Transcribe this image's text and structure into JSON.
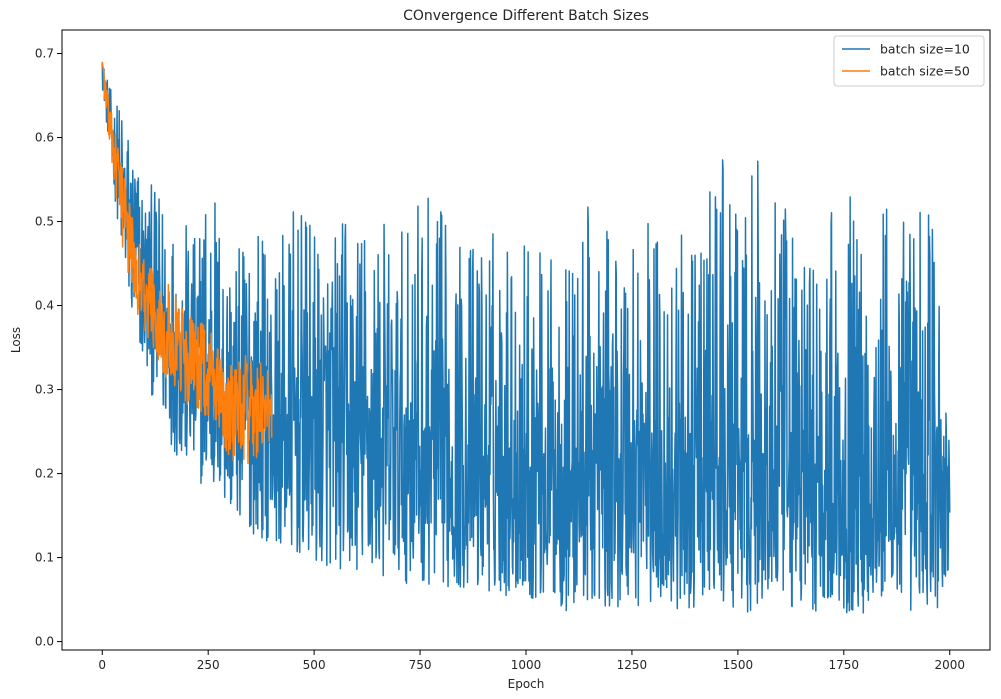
{
  "chart_data": {
    "type": "line",
    "title": "COnvergence Different Batch Sizes",
    "xlabel": "Epoch",
    "ylabel": "Loss",
    "xlim": [
      -95,
      2095
    ],
    "ylim": [
      -0.01,
      0.728
    ],
    "xticks": [
      0,
      250,
      500,
      750,
      1000,
      1250,
      1500,
      1750,
      2000
    ],
    "xtick_labels": [
      "0",
      "250",
      "500",
      "750",
      "1000",
      "1250",
      "1500",
      "1750",
      "2000"
    ],
    "yticks": [
      0.0,
      0.1,
      0.2,
      0.3,
      0.4,
      0.5,
      0.6,
      0.7
    ],
    "ytick_labels": [
      "0.0",
      "0.1",
      "0.2",
      "0.3",
      "0.4",
      "0.5",
      "0.6",
      "0.7"
    ],
    "grid": false,
    "legend_position": "top-right",
    "series": [
      {
        "name": "batch size=10",
        "color": "#1f77b4",
        "x": [
          0,
          25,
          50,
          75,
          100,
          125,
          150,
          175,
          200,
          225,
          250,
          275,
          300,
          325,
          350,
          375,
          400,
          450,
          500,
          550,
          600,
          650,
          700,
          750,
          800,
          850,
          900,
          950,
          1000,
          1050,
          1100,
          1150,
          1200,
          1250,
          1300,
          1350,
          1400,
          1450,
          1500,
          1550,
          1600,
          1650,
          1700,
          1750,
          1800,
          1850,
          1900,
          1950,
          2000
        ],
        "mean": [
          0.69,
          0.6,
          0.53,
          0.48,
          0.44,
          0.41,
          0.38,
          0.36,
          0.34,
          0.33,
          0.32,
          0.31,
          0.3,
          0.29,
          0.285,
          0.28,
          0.27,
          0.26,
          0.255,
          0.25,
          0.245,
          0.24,
          0.235,
          0.23,
          0.228,
          0.225,
          0.222,
          0.22,
          0.218,
          0.216,
          0.214,
          0.212,
          0.21,
          0.208,
          0.206,
          0.205,
          0.204,
          0.203,
          0.202,
          0.201,
          0.2,
          0.2,
          0.199,
          0.198,
          0.198,
          0.197,
          0.197,
          0.196,
          0.196
        ],
        "min": [
          0.66,
          0.55,
          0.44,
          0.36,
          0.32,
          0.28,
          0.25,
          0.22,
          0.2,
          0.19,
          0.18,
          0.17,
          0.15,
          0.14,
          0.13,
          0.12,
          0.12,
          0.1,
          0.09,
          0.085,
          0.08,
          0.075,
          0.07,
          0.068,
          0.065,
          0.06,
          0.058,
          0.055,
          0.05,
          0.045,
          0.032,
          0.04,
          0.04,
          0.04,
          0.04,
          0.035,
          0.04,
          0.04,
          0.035,
          0.035,
          0.04,
          0.035,
          0.035,
          0.035,
          0.03,
          0.035,
          0.035,
          0.035,
          0.038
        ],
        "max": [
          0.69,
          0.65,
          0.64,
          0.6,
          0.55,
          0.54,
          0.53,
          0.5,
          0.5,
          0.48,
          0.62,
          0.53,
          0.48,
          0.47,
          0.56,
          0.5,
          0.45,
          0.52,
          0.5,
          0.5,
          0.52,
          0.52,
          0.48,
          0.54,
          0.52,
          0.48,
          0.5,
          0.5,
          0.5,
          0.46,
          0.46,
          0.53,
          0.48,
          0.575,
          0.5,
          0.5,
          0.46,
          0.613,
          0.5,
          0.585,
          0.52,
          0.5,
          0.5,
          0.56,
          0.5,
          0.55,
          0.51,
          0.58,
          0.3
        ]
      },
      {
        "name": "batch size=50",
        "color": "#ff7f0e",
        "x": [
          0,
          25,
          50,
          75,
          100,
          125,
          150,
          175,
          200,
          225,
          250,
          275,
          300,
          325,
          350,
          375,
          400
        ],
        "mean": [
          0.69,
          0.6,
          0.52,
          0.46,
          0.42,
          0.4,
          0.37,
          0.355,
          0.34,
          0.33,
          0.32,
          0.31,
          0.3,
          0.295,
          0.29,
          0.285,
          0.28
        ],
        "min": [
          0.67,
          0.55,
          0.46,
          0.4,
          0.37,
          0.34,
          0.31,
          0.3,
          0.28,
          0.27,
          0.26,
          0.25,
          0.2,
          0.23,
          0.185,
          0.22,
          0.24
        ],
        "max": [
          0.69,
          0.62,
          0.56,
          0.5,
          0.47,
          0.45,
          0.43,
          0.41,
          0.39,
          0.39,
          0.37,
          0.36,
          0.35,
          0.35,
          0.34,
          0.34,
          0.32
        ]
      }
    ]
  }
}
